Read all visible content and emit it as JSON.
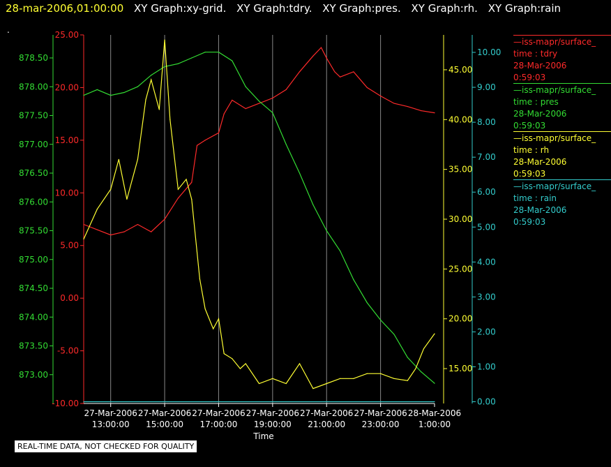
{
  "header": {
    "timestamp": "28-mar-2006,01:00:00",
    "graphs": [
      "XY Graph:xy-grid.",
      "XY Graph:tdry.",
      "XY Graph:pres.",
      "XY Graph:rh.",
      "XY Graph:rain"
    ]
  },
  "dot": ".",
  "notice": "REAL-TIME DATA, NOT CHECKED FOR QUALITY",
  "colors": {
    "tdry": "#ff2a2a",
    "pres": "#33dd33",
    "rh": "#ffff33",
    "rain": "#33cccc",
    "grid": "#888888"
  },
  "legend": [
    {
      "name": "—iss-mapr/surface_",
      "field": "time : tdry",
      "date": "28-Mar-2006",
      "time": "0:59:03",
      "color": "#ff2a2a"
    },
    {
      "name": "—iss-mapr/surface_",
      "field": "time : pres",
      "date": "28-Mar-2006",
      "time": "0:59:03",
      "color": "#33dd33"
    },
    {
      "name": "—iss-mapr/surface_",
      "field": "time : rh",
      "date": "28-Mar-2006",
      "time": "0:59:03",
      "color": "#ffff33"
    },
    {
      "name": "—iss-mapr/surface_",
      "field": "time : rain",
      "date": "28-Mar-2006",
      "time": "0:59:03",
      "color": "#33cccc"
    }
  ],
  "chart_data": {
    "type": "line",
    "xlabel": "Time",
    "xlim": [
      12.0,
      25.0
    ],
    "x_ticks": [
      {
        "x": 13,
        "line1": "27-Mar-2006",
        "line2": "13:00:00"
      },
      {
        "x": 15,
        "line1": "27-Mar-2006",
        "line2": "15:00:00"
      },
      {
        "x": 17,
        "line1": "27-Mar-2006",
        "line2": "17:00:00"
      },
      {
        "x": 19,
        "line1": "27-Mar-2006",
        "line2": "19:00:00"
      },
      {
        "x": 21,
        "line1": "27-Mar-2006",
        "line2": "21:00:00"
      },
      {
        "x": 23,
        "line1": "27-Mar-2006",
        "line2": "23:00:00"
      },
      {
        "x": 25,
        "line1": "28-Mar-2006",
        "line2": "1:00:00"
      }
    ],
    "axes": {
      "pres": {
        "ylim": [
          872.5,
          878.9
        ],
        "ticks": [
          "873.00",
          "873.50",
          "874.00",
          "874.50",
          "875.00",
          "875.50",
          "876.00",
          "876.50",
          "877.00",
          "877.50",
          "878.00",
          "878.50"
        ]
      },
      "tdry": {
        "ylim": [
          -10,
          25
        ],
        "ticks": [
          "-10.00",
          "-5.00",
          "0.00",
          "5.00",
          "10.00",
          "15.00",
          "20.00",
          "25.00"
        ]
      },
      "rh": {
        "ylim": [
          11.5,
          48.5
        ],
        "ticks": [
          "15.00",
          "20.00",
          "25.00",
          "30.00",
          "35.00",
          "40.00",
          "45.00"
        ]
      },
      "rain": {
        "ylim": [
          -0.05,
          10.5
        ],
        "ticks": [
          "0.00",
          "1.00",
          "2.00",
          "3.00",
          "4.00",
          "5.00",
          "6.00",
          "7.00",
          "8.00",
          "9.00",
          "10.00"
        ]
      }
    },
    "series": [
      {
        "name": "tdry",
        "axis": "tdry",
        "x": [
          12.0,
          12.5,
          13.0,
          13.5,
          14.0,
          14.5,
          15.0,
          15.5,
          16.0,
          16.2,
          16.5,
          17.0,
          17.2,
          17.5,
          18.0,
          18.5,
          19.0,
          19.5,
          20.0,
          20.5,
          20.8,
          21.0,
          21.3,
          21.5,
          22.0,
          22.5,
          23.0,
          23.5,
          24.0,
          24.5,
          25.0
        ],
        "y": [
          7.0,
          6.5,
          6.0,
          6.3,
          7.0,
          6.3,
          7.5,
          9.5,
          11.0,
          14.5,
          15.0,
          15.7,
          17.5,
          18.8,
          18.0,
          18.5,
          19.0,
          19.8,
          21.5,
          23.0,
          23.8,
          22.8,
          21.5,
          21.0,
          21.5,
          20.0,
          19.2,
          18.5,
          18.2,
          17.8,
          17.6
        ]
      },
      {
        "name": "pres",
        "axis": "pres",
        "x": [
          12.0,
          12.5,
          13.0,
          13.5,
          14.0,
          14.5,
          15.0,
          15.5,
          16.0,
          16.5,
          17.0,
          17.5,
          18.0,
          18.5,
          19.0,
          19.5,
          20.0,
          20.5,
          21.0,
          21.5,
          22.0,
          22.5,
          23.0,
          23.5,
          24.0,
          24.5,
          25.0
        ],
        "y": [
          877.85,
          877.95,
          877.85,
          877.9,
          878.0,
          878.2,
          878.35,
          878.4,
          878.5,
          878.6,
          878.6,
          878.45,
          878.0,
          877.75,
          877.55,
          877.0,
          876.5,
          875.95,
          875.5,
          875.15,
          874.65,
          874.25,
          873.95,
          873.7,
          873.3,
          873.05,
          872.85
        ]
      },
      {
        "name": "rh",
        "axis": "rh",
        "x": [
          12.0,
          12.5,
          13.0,
          13.3,
          13.6,
          14.0,
          14.3,
          14.5,
          14.8,
          15.0,
          15.2,
          15.5,
          15.8,
          16.0,
          16.3,
          16.5,
          16.8,
          17.0,
          17.2,
          17.5,
          17.8,
          18.0,
          18.5,
          19.0,
          19.5,
          20.0,
          20.5,
          21.0,
          21.5,
          22.0,
          22.5,
          23.0,
          23.5,
          24.0,
          24.3,
          24.6,
          25.0
        ],
        "y": [
          28.0,
          31.0,
          33.0,
          36.0,
          32.0,
          36.0,
          42.0,
          44.0,
          41.0,
          48.0,
          40.0,
          33.0,
          34.0,
          32.0,
          24.0,
          21.0,
          19.0,
          20.0,
          16.5,
          16.0,
          15.0,
          15.5,
          13.5,
          14.0,
          13.5,
          15.5,
          13.0,
          13.5,
          14.0,
          14.0,
          14.5,
          14.5,
          14.0,
          13.8,
          15.0,
          17.0,
          18.5
        ]
      },
      {
        "name": "rain",
        "axis": "rain",
        "x": [
          12.0,
          25.0
        ],
        "y": [
          0.0,
          0.0
        ]
      }
    ]
  }
}
